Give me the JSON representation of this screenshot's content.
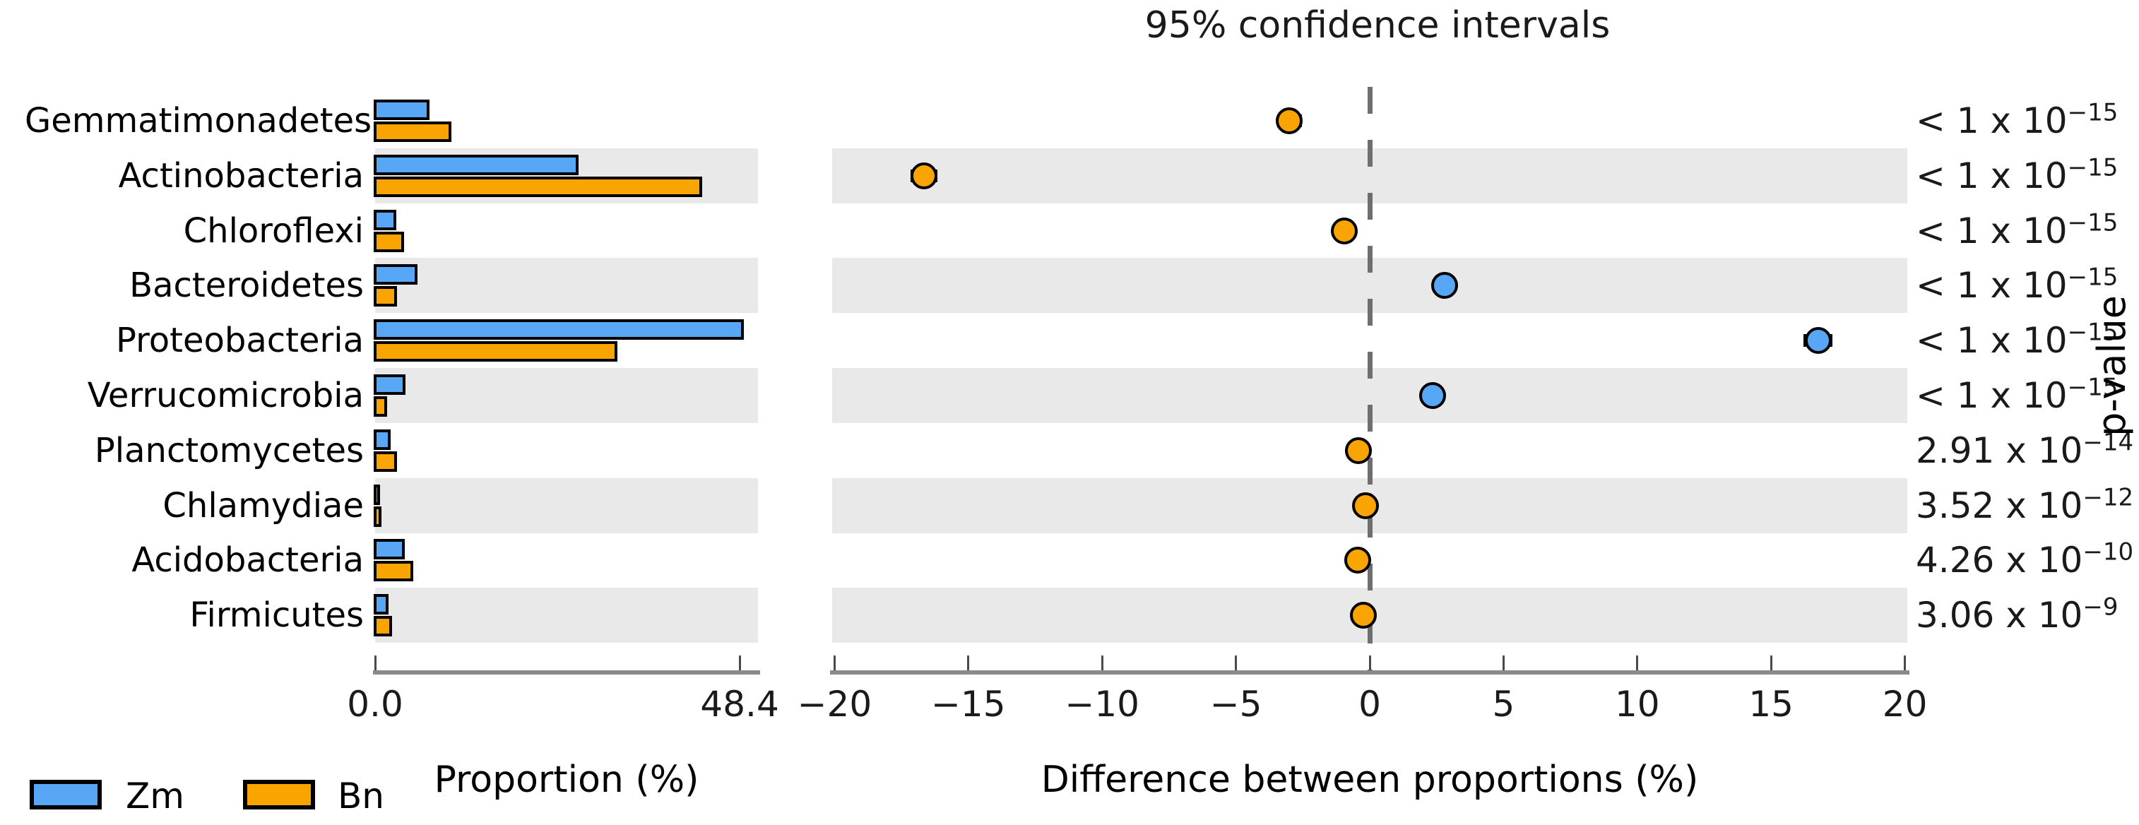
{
  "title": "95% confidence intervals",
  "left_axis": {
    "label": "Proportion (%)",
    "tick_labels": [
      "0.0",
      "48.4"
    ],
    "tick_values": [
      0,
      48.4
    ],
    "max": 48.4
  },
  "right_axis": {
    "label": "Difference between proportions (%)",
    "tick_labels": [
      "−20",
      "−15",
      "−10",
      "−5",
      "0",
      "5",
      "10",
      "15",
      "20"
    ],
    "tick_values": [
      -20,
      -15,
      -10,
      -5,
      0,
      5,
      10,
      15,
      20
    ],
    "min": -20,
    "max": 20,
    "side_label": "p-value"
  },
  "legend": {
    "items": [
      {
        "label": "Zm",
        "color": "#57A7F6"
      },
      {
        "label": "Bn",
        "color": "#FAA402"
      }
    ]
  },
  "chart_data": {
    "type": "bar",
    "subtype": "stamp-extended-error-bar",
    "orientation": "horizontal",
    "grid": false,
    "row_shading": "alternate-gray",
    "categories": [
      "Gemmatimonadetes",
      "Actinobacteria",
      "Chloroflexi",
      "Bacteroidetes",
      "Proteobacteria",
      "Verrucomicrobia",
      "Planctomycetes",
      "Chlamydiae",
      "Acidobacteria",
      "Firmicutes"
    ],
    "series": [
      {
        "name": "Zm",
        "color": "#57A7F6",
        "values": [
          6.7,
          26.4,
          2.2,
          5.1,
          48.4,
          3.5,
          1.5,
          0.05,
          3.4,
          1.2
        ]
      },
      {
        "name": "Bn",
        "color": "#FAA402",
        "values": [
          9.6,
          42.9,
          3.3,
          2.3,
          31.6,
          1.0,
          2.3,
          0.3,
          4.5,
          1.7
        ]
      }
    ],
    "difference": {
      "values": [
        -3.0,
        -16.65,
        -0.95,
        2.8,
        16.75,
        2.35,
        -0.42,
        -0.15,
        -0.45,
        -0.25
      ],
      "ci_half_width": [
        0.4,
        0.45,
        0.3,
        0.3,
        0.5,
        0.3,
        0.25,
        0.2,
        0.3,
        0.25
      ],
      "dot_group": [
        "Bn",
        "Bn",
        "Bn",
        "Zm",
        "Zm",
        "Zm",
        "Bn",
        "Bn",
        "Bn",
        "Bn"
      ]
    },
    "p_values": [
      {
        "prefix": "< 1 x 10",
        "exponent": "−15"
      },
      {
        "prefix": "< 1 x 10",
        "exponent": "−15"
      },
      {
        "prefix": "< 1 x 10",
        "exponent": "−15"
      },
      {
        "prefix": "< 1 x 10",
        "exponent": "−15"
      },
      {
        "prefix": "< 1 x 10",
        "exponent": "−15"
      },
      {
        "prefix": "< 1 x 10",
        "exponent": "−15"
      },
      {
        "prefix": "2.91 x 10",
        "exponent": "−14"
      },
      {
        "prefix": "3.52 x 10",
        "exponent": "−12"
      },
      {
        "prefix": "4.26 x 10",
        "exponent": "−10"
      },
      {
        "prefix": "3.06 x 10",
        "exponent": "−9"
      }
    ],
    "row_shaded": [
      false,
      true,
      false,
      true,
      false,
      true,
      false,
      true,
      false,
      true
    ]
  }
}
